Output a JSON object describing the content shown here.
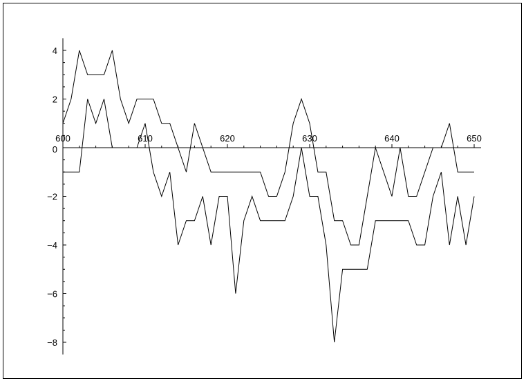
{
  "chart_data": {
    "type": "line",
    "title": "",
    "xlabel": "",
    "ylabel": "",
    "xlim": [
      600,
      650
    ],
    "ylim": [
      -8.5,
      4.5
    ],
    "grid": false,
    "x_ticks": [
      600,
      610,
      620,
      630,
      640,
      650
    ],
    "y_ticks": [
      -8,
      -6,
      -4,
      -2,
      0,
      2,
      4
    ],
    "x": [
      600,
      601,
      602,
      603,
      604,
      605,
      606,
      607,
      608,
      609,
      610,
      611,
      612,
      613,
      614,
      615,
      616,
      617,
      618,
      619,
      620,
      621,
      622,
      623,
      624,
      625,
      626,
      627,
      628,
      629,
      630,
      631,
      632,
      633,
      634,
      635,
      636,
      637,
      638,
      639,
      640,
      641,
      642,
      643,
      644,
      645,
      646,
      647,
      648,
      649,
      650
    ],
    "series": [
      {
        "values": [
          1,
          2,
          4,
          3,
          3,
          3,
          4,
          2,
          1,
          2,
          2,
          2,
          1,
          1,
          0,
          -1,
          1,
          0,
          -1,
          -1,
          -1,
          -1,
          -1,
          -1,
          -1,
          -2,
          -2,
          -1,
          1,
          2,
          1,
          -1,
          -1,
          -3,
          -3,
          -4,
          -4,
          -2,
          0,
          -1,
          -2,
          0,
          -2,
          -2,
          -1,
          0,
          0,
          1,
          -1,
          -1,
          -1
        ]
      },
      {
        "values": [
          -1,
          -1,
          -1,
          2,
          1,
          2,
          0,
          0,
          0,
          0,
          1,
          -1,
          -2,
          -1,
          -4,
          -3,
          -3,
          -2,
          -4,
          -2,
          -2,
          -6,
          -3,
          -2,
          -3,
          -3,
          -3,
          -3,
          -2,
          0,
          -2,
          -2,
          -4,
          -8,
          -5,
          -5,
          -5,
          -5,
          -3,
          -3,
          -3,
          -3,
          -3,
          -4,
          -4,
          -2,
          -1,
          -4,
          -2,
          -4,
          -2
        ]
      }
    ]
  }
}
